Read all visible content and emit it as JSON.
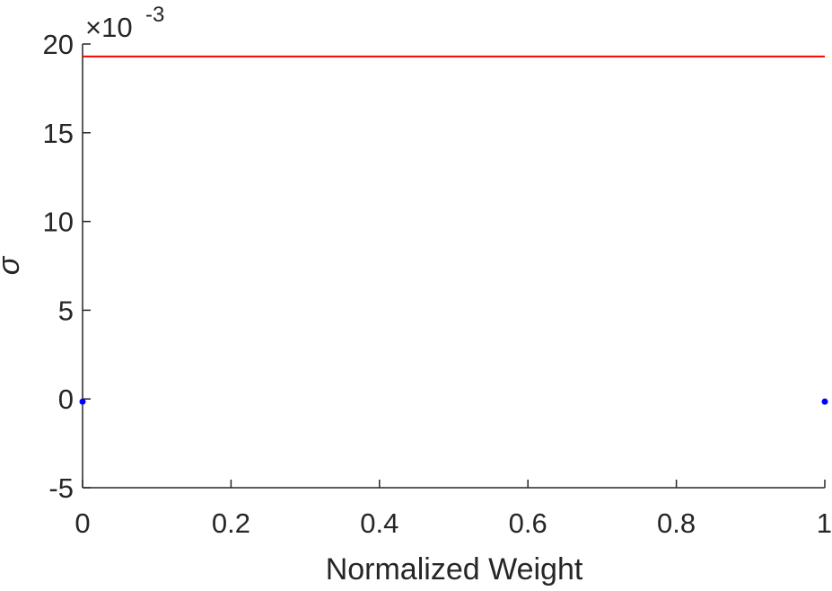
{
  "chart_data": {
    "type": "scatter",
    "title": "",
    "xlabel": "Normalized Weight",
    "ylabel": "σ",
    "y_multiplier_label": {
      "base": "×10",
      "exponent": "-3"
    },
    "xlim": [
      0,
      1
    ],
    "ylim": [
      -5,
      20
    ],
    "x_ticks": [
      0,
      0.2,
      0.4,
      0.6,
      0.8,
      1
    ],
    "x_tick_labels": [
      "0",
      "0.2",
      "0.4",
      "0.6",
      "0.8",
      "1"
    ],
    "y_ticks": [
      -5,
      0,
      5,
      10,
      15,
      20
    ],
    "y_tick_labels": [
      "-5",
      "0",
      "5",
      "10",
      "15",
      "20"
    ],
    "grid": false,
    "box": false,
    "series": [
      {
        "type": "scatter",
        "color": "#0000ff",
        "x": [
          0,
          1
        ],
        "y": [
          -0.15,
          -0.15
        ]
      },
      {
        "type": "line",
        "color": "#ff0000",
        "x": [
          0,
          1
        ],
        "y": [
          19.3,
          19.3
        ]
      }
    ]
  }
}
